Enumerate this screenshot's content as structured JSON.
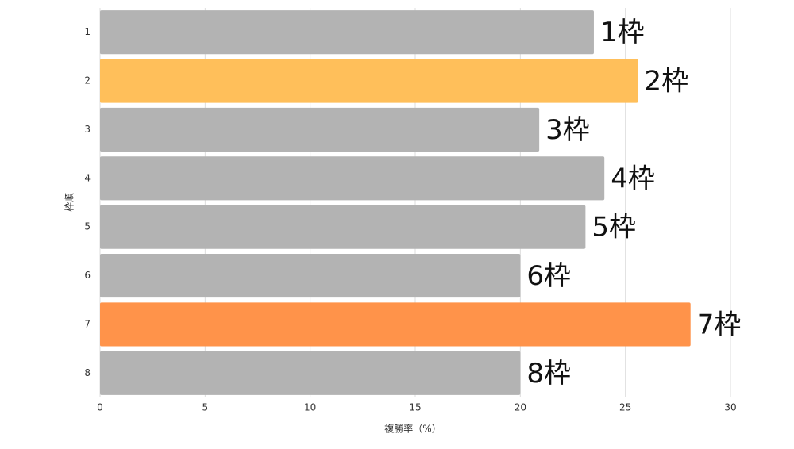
{
  "chart_data": {
    "type": "bar",
    "orientation": "horizontal",
    "categories": [
      "1",
      "2",
      "3",
      "4",
      "5",
      "6",
      "7",
      "8"
    ],
    "values": [
      23.5,
      25.6,
      20.9,
      24.0,
      23.1,
      20.0,
      28.1,
      20.0
    ],
    "bar_labels": [
      "1枠",
      "2枠",
      "3枠",
      "4枠",
      "5枠",
      "6枠",
      "7枠",
      "8枠"
    ],
    "colors": [
      "#b3b3b3",
      "#ffbf5a",
      "#b3b3b3",
      "#b3b3b3",
      "#b3b3b3",
      "#b3b3b3",
      "#ff934a",
      "#b3b3b3"
    ],
    "xlim": [
      0,
      30
    ],
    "xticks": [
      0,
      5,
      10,
      15,
      20,
      25,
      30
    ],
    "xlabel": "複勝率（%）",
    "ylabel": "枠順",
    "grid": true
  }
}
